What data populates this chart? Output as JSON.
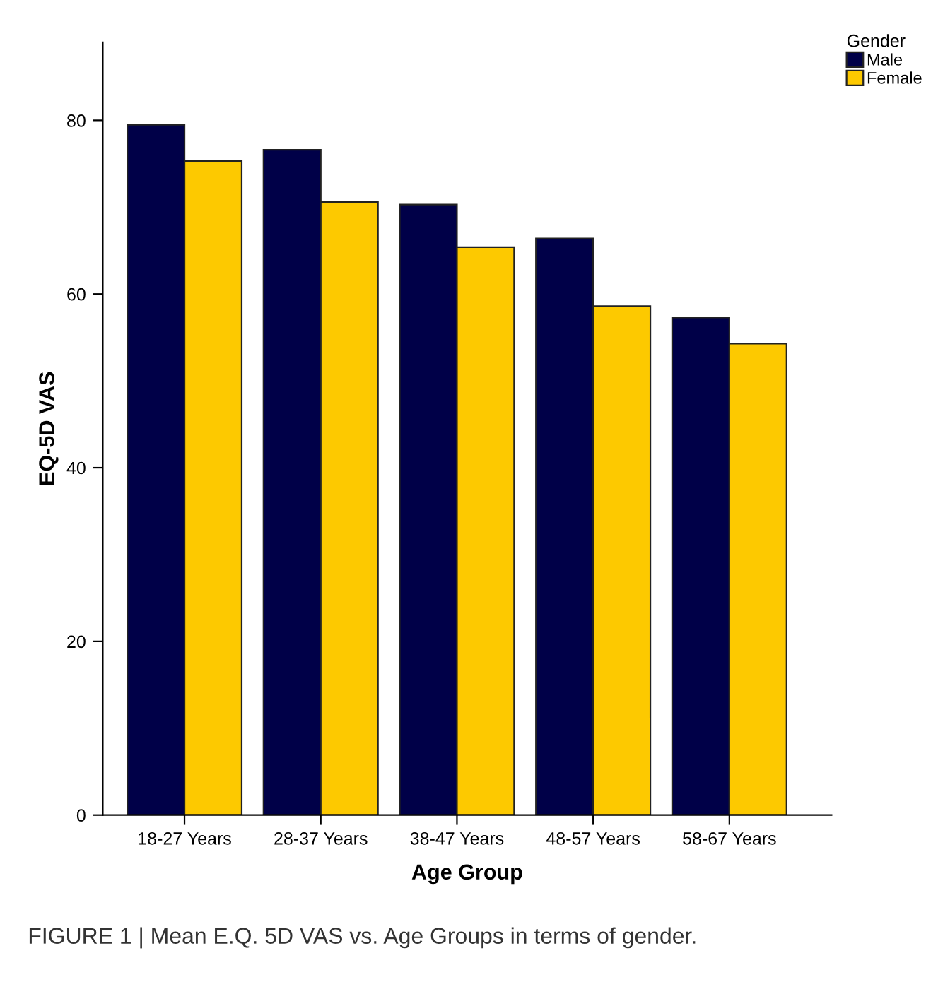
{
  "chart_data": {
    "type": "bar",
    "xlabel": "Age Group",
    "ylabel": "EQ-5D VAS",
    "legend_title": "Gender",
    "categories": [
      "18-27 Years",
      "28-37 Years",
      "38-47 Years",
      "48-57 Years",
      "58-67 Years"
    ],
    "series": [
      {
        "name": "Male",
        "color": "#000048",
        "values": [
          79.5,
          76.6,
          70.3,
          66.4,
          57.3
        ]
      },
      {
        "name": "Female",
        "color": "#fdc900",
        "values": [
          75.3,
          70.6,
          65.4,
          58.6,
          54.3
        ]
      }
    ],
    "ylim": [
      0,
      89
    ],
    "yticks": [
      0,
      20,
      40,
      60,
      80
    ],
    "grid": false,
    "legend": "top right",
    "annotations": [
      "FIGURE 1 | Mean E.Q. 5D VAS vs. Age Groups in terms of gender."
    ]
  }
}
